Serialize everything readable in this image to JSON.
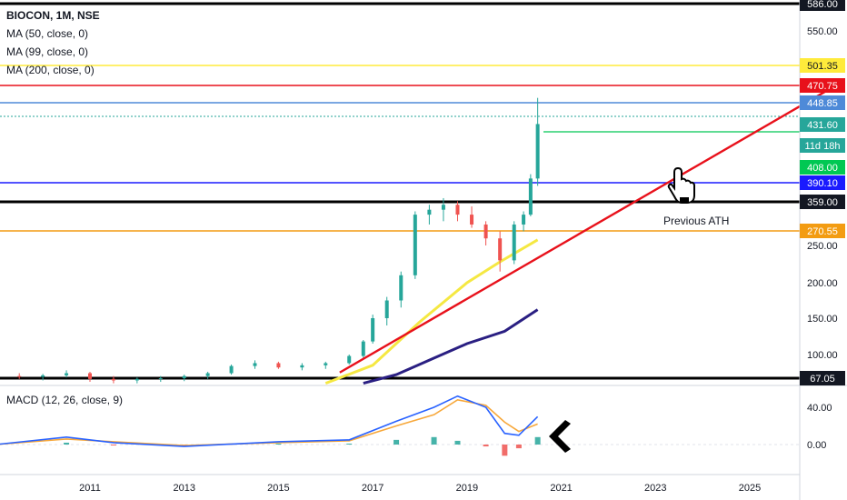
{
  "legend": {
    "symbol": "BIOCON, 1M, NSE",
    "ma50": "MA (50, close, 0)",
    "ma99": "MA (99, close, 0)",
    "ma200": "MA (200, close, 0)"
  },
  "macd_label": "MACD (12, 26, close, 9)",
  "annotation": "Previous ATH",
  "colors": {
    "up": "#26a69a",
    "down": "#ef5350",
    "ma_fast": "#f5e842",
    "ma_slow": "#2a1f82",
    "trend": "#e8111b",
    "macd": "#2962ff",
    "signal": "#f7a83b"
  },
  "chart_data": {
    "type": "candlestick",
    "x_ticks": [
      "2011",
      "2013",
      "2015",
      "2017",
      "2019",
      "2021",
      "2023",
      "2025"
    ],
    "y_ticks": [
      "550.00",
      "250.00",
      "200.00",
      "150.00",
      "100.00"
    ],
    "price_labels": [
      {
        "text": "586.00",
        "value": 586,
        "color": "#131722"
      },
      {
        "text": "501.35",
        "value": 501.35,
        "color": "#ffeb3b"
      },
      {
        "text": "470.75",
        "value": 470.75,
        "color": "#e8111b"
      },
      {
        "text": "448.85",
        "value": 448.85,
        "color": "#4e8ad8"
      },
      {
        "text": "431.60",
        "value": 431.6,
        "color": "#26a69a"
      },
      {
        "text": "11d 18h",
        "value": 412,
        "color": "#26a69a"
      },
      {
        "text": "408.00",
        "value": 408,
        "color": "#00c853"
      },
      {
        "text": "390.10",
        "value": 390.1,
        "color": "#1a1aff"
      },
      {
        "text": "359.00",
        "value": 359,
        "color": "#131722"
      },
      {
        "text": "270.55",
        "value": 270.55,
        "color": "#f39c12"
      },
      {
        "text": "67.05",
        "value": 67.05,
        "color": "#131722"
      }
    ],
    "horizontal_levels": [
      {
        "value": 586,
        "color": "#000000"
      },
      {
        "value": 501.35,
        "color": "#ffeb3b"
      },
      {
        "value": 470.75,
        "color": "#e8111b"
      },
      {
        "value": 448.85,
        "color": "#4e8ad8"
      },
      {
        "value": 390.1,
        "color": "#1a1aff"
      },
      {
        "value": 359,
        "color": "#000000"
      },
      {
        "value": 270.55,
        "color": "#f39c12"
      },
      {
        "value": 67.05,
        "color": "#000000"
      }
    ],
    "ohlc": [
      [
        2009.0,
        68,
        72,
        65,
        70
      ],
      [
        2009.5,
        70,
        74,
        66,
        69
      ],
      [
        2010.0,
        69,
        73,
        64,
        71
      ],
      [
        2010.5,
        71,
        78,
        68,
        74
      ],
      [
        2011.0,
        74,
        76,
        62,
        66
      ],
      [
        2011.5,
        66,
        70,
        60,
        64
      ],
      [
        2012.0,
        64,
        68,
        60,
        66
      ],
      [
        2012.5,
        66,
        70,
        62,
        67
      ],
      [
        2013.0,
        67,
        72,
        63,
        70
      ],
      [
        2013.5,
        70,
        76,
        66,
        74
      ],
      [
        2014.0,
        74,
        86,
        72,
        84
      ],
      [
        2014.5,
        84,
        92,
        80,
        88
      ],
      [
        2015.0,
        88,
        90,
        80,
        82
      ],
      [
        2015.5,
        82,
        88,
        78,
        85
      ],
      [
        2016.0,
        85,
        90,
        80,
        88
      ],
      [
        2016.5,
        88,
        100,
        86,
        98
      ],
      [
        2016.8,
        98,
        120,
        95,
        118
      ],
      [
        2017.0,
        118,
        155,
        115,
        150
      ],
      [
        2017.3,
        150,
        180,
        140,
        175
      ],
      [
        2017.6,
        175,
        215,
        165,
        210
      ],
      [
        2017.9,
        210,
        330,
        205,
        320
      ],
      [
        2018.2,
        320,
        350,
        290,
        335
      ],
      [
        2018.5,
        335,
        365,
        300,
        350
      ],
      [
        2018.8,
        350,
        360,
        300,
        320
      ],
      [
        2019.1,
        320,
        345,
        280,
        290
      ],
      [
        2019.4,
        290,
        300,
        250,
        260
      ],
      [
        2019.7,
        260,
        270,
        215,
        230
      ],
      [
        2020.0,
        230,
        300,
        225,
        290
      ],
      [
        2020.2,
        290,
        330,
        270,
        320
      ],
      [
        2020.35,
        320,
        400,
        315,
        395
      ],
      [
        2020.5,
        395,
        455,
        385,
        432
      ]
    ],
    "ma_fast": [
      [
        2016.0,
        60
      ],
      [
        2017.0,
        85
      ],
      [
        2018.0,
        145
      ],
      [
        2019.0,
        200
      ],
      [
        2019.7,
        228
      ],
      [
        2020.5,
        258
      ]
    ],
    "ma_slow": [
      [
        2016.8,
        60
      ],
      [
        2017.5,
        72
      ],
      [
        2018.3,
        95
      ],
      [
        2019.0,
        115
      ],
      [
        2019.8,
        132
      ],
      [
        2020.5,
        162
      ]
    ],
    "trendline": [
      [
        2016.3,
        75
      ],
      [
        2027.0,
        478
      ]
    ],
    "macd": {
      "y_ticks": [
        "40.00",
        "0.00"
      ],
      "macd_line": [
        [
          2009.0,
          0
        ],
        [
          2010.5,
          8
        ],
        [
          2011.5,
          2
        ],
        [
          2013.0,
          -2
        ],
        [
          2015.0,
          3
        ],
        [
          2016.5,
          5
        ],
        [
          2017.5,
          25
        ],
        [
          2018.3,
          40
        ],
        [
          2018.8,
          52
        ],
        [
          2019.4,
          40
        ],
        [
          2019.8,
          12
        ],
        [
          2020.1,
          10
        ],
        [
          2020.5,
          30
        ]
      ],
      "signal_line": [
        [
          2009.0,
          0
        ],
        [
          2010.5,
          6
        ],
        [
          2011.5,
          3
        ],
        [
          2013.0,
          -1
        ],
        [
          2015.0,
          2
        ],
        [
          2016.5,
          4
        ],
        [
          2017.5,
          20
        ],
        [
          2018.3,
          32
        ],
        [
          2018.8,
          48
        ],
        [
          2019.4,
          42
        ],
        [
          2019.8,
          24
        ],
        [
          2020.1,
          14
        ],
        [
          2020.5,
          22
        ]
      ],
      "histogram": [
        [
          2010.5,
          2
        ],
        [
          2011.5,
          -1
        ],
        [
          2013.0,
          -1
        ],
        [
          2015.0,
          1
        ],
        [
          2016.5,
          1
        ],
        [
          2017.5,
          5
        ],
        [
          2018.3,
          8
        ],
        [
          2018.8,
          4
        ],
        [
          2019.4,
          -2
        ],
        [
          2019.8,
          -12
        ],
        [
          2020.1,
          -4
        ],
        [
          2020.5,
          8
        ]
      ]
    }
  }
}
